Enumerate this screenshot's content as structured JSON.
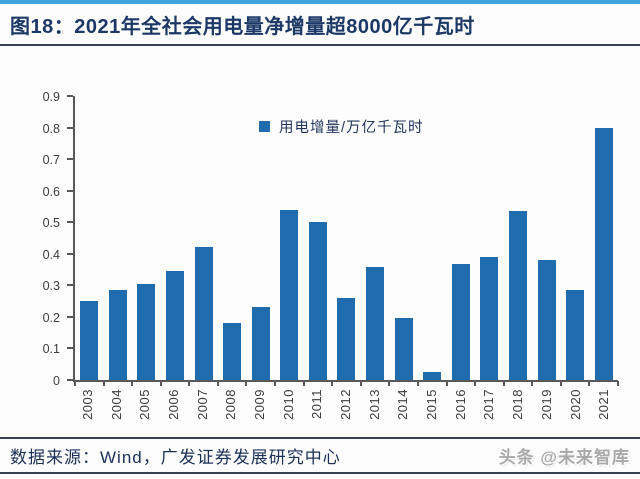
{
  "header": {
    "title": "图18：2021年全社会用电量净增量超8000亿千瓦时"
  },
  "chart_data": {
    "type": "bar",
    "title": "2021年全社会用电量净增量超8000亿千瓦时",
    "categories": [
      "2003",
      "2004",
      "2005",
      "2006",
      "2007",
      "2008",
      "2009",
      "2010",
      "2011",
      "2012",
      "2013",
      "2014",
      "2015",
      "2016",
      "2017",
      "2018",
      "2019",
      "2020",
      "2021"
    ],
    "series": [
      {
        "name": "用电增量/万亿千瓦时",
        "values": [
          0.25,
          0.285,
          0.303,
          0.345,
          0.42,
          0.18,
          0.232,
          0.538,
          0.5,
          0.26,
          0.357,
          0.197,
          0.025,
          0.368,
          0.39,
          0.535,
          0.38,
          0.285,
          0.8
        ]
      }
    ],
    "xlabel": "",
    "ylabel": "",
    "ylim": [
      0,
      0.9
    ],
    "yticks": [
      "0",
      "0.1",
      "0.2",
      "0.3",
      "0.4",
      "0.5",
      "0.6",
      "0.7",
      "0.8",
      "0.9"
    ],
    "grid": false,
    "legend_position": "top-center",
    "bar_color": "#1f6caf"
  },
  "footer": {
    "source": "数据来源：Wind，广发证券发展研究中心",
    "watermark": "头条 @未来智库"
  },
  "colors": {
    "accent_top_line": "#3ea4db",
    "separator_line": "#39424e",
    "title_text": "#1b3866",
    "bar": "#1f6caf",
    "axis": "#595959"
  }
}
